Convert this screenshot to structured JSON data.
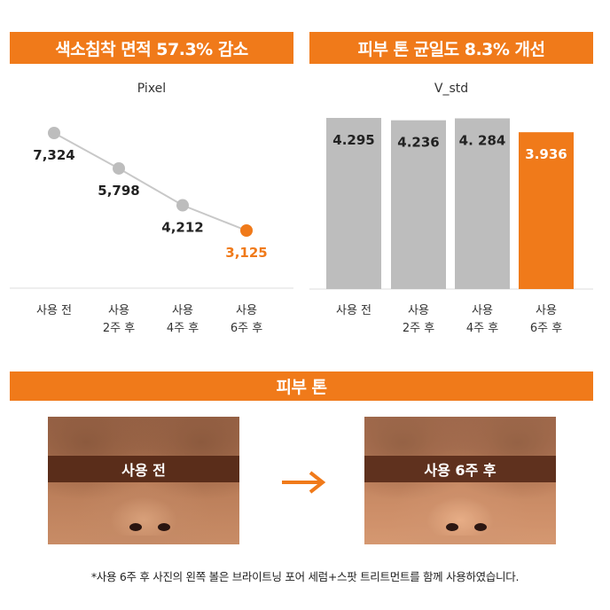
{
  "banners": {
    "left": "색소침착 면적 57.3% 감소",
    "right": "피부 톤 균일도 8.3% 개선",
    "bottom": "피부 톤"
  },
  "chart_data": [
    {
      "type": "line",
      "title": "Pixel",
      "categories": [
        [
          "사용 전"
        ],
        [
          "사용",
          "2주 후"
        ],
        [
          "사용",
          "4주 후"
        ],
        [
          "사용",
          "6주 후"
        ]
      ],
      "values": [
        7324,
        5798,
        4212,
        3125
      ],
      "labels": [
        "7,324",
        "5,798",
        "4,212",
        "3,125"
      ],
      "highlight_index": 3,
      "colors": {
        "line": "#c8c8c8",
        "point": "#bdbdbd",
        "highlight": "#f07a1a"
      }
    },
    {
      "type": "bar",
      "title": "V_std",
      "categories": [
        [
          "사용 전"
        ],
        [
          "사용",
          "2주 후"
        ],
        [
          "사용",
          "4주 후"
        ],
        [
          "사용",
          "6주 후"
        ]
      ],
      "values": [
        4.295,
        4.236,
        4.284,
        3.936
      ],
      "labels": [
        "4.295",
        "4.236",
        "4. 284",
        "3.936"
      ],
      "highlight_index": 3,
      "colors": {
        "bar": "#bdbdbd",
        "highlight": "#f07a1a",
        "label": "#222222",
        "highlight_label": "#ffffff"
      }
    }
  ],
  "photos": {
    "before_label": "사용 전",
    "after_label": "사용 6주 후"
  },
  "footnote": "*사용 6주 후 사진의 왼쪽 볼은 브라이트닝 포어 세럼+스팟 트리트먼트를 함께 사용하였습니다.",
  "colors": {
    "accent": "#f07a1a",
    "band": "#5a2d1a"
  }
}
